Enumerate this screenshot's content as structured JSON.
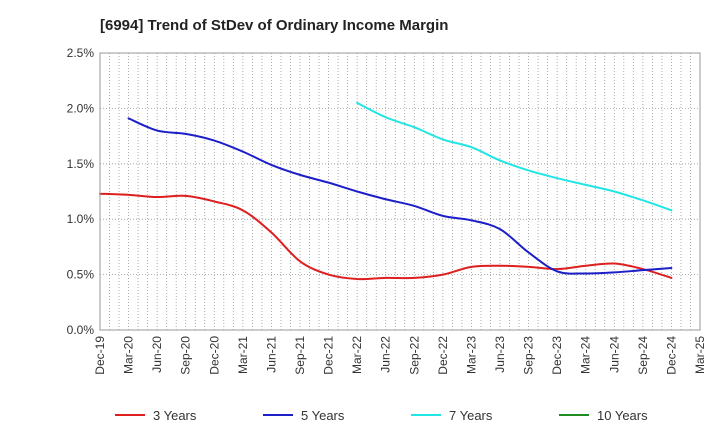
{
  "chart_data": {
    "type": "line",
    "title": "[6994]  Trend of StDev of Ordinary Income Margin",
    "xlabel": "",
    "ylabel": "",
    "x_tick_labels": [
      "Dec-19",
      "Mar-20",
      "Jun-20",
      "Sep-20",
      "Dec-20",
      "Mar-21",
      "Jun-21",
      "Sep-21",
      "Dec-21",
      "Mar-22",
      "Jun-22",
      "Sep-22",
      "Dec-22",
      "Mar-23",
      "Jun-23",
      "Sep-23",
      "Dec-23",
      "Mar-24",
      "Jun-24",
      "Sep-24",
      "Dec-24",
      "Mar-25"
    ],
    "y_tick_labels": [
      "0.0%",
      "0.5%",
      "1.0%",
      "1.5%",
      "2.0%",
      "2.5%"
    ],
    "ylim": [
      0,
      2.5
    ],
    "y_unit": "%",
    "grid": true,
    "legend_position": "bottom",
    "series": [
      {
        "name": "3 Years",
        "color": "#dd1f1f",
        "x": [
          "Dec-19",
          "Mar-20",
          "Jun-20",
          "Sep-20",
          "Dec-20",
          "Mar-21",
          "Jun-21",
          "Sep-21",
          "Dec-21",
          "Mar-22",
          "Jun-22",
          "Sep-22",
          "Dec-22",
          "Mar-23",
          "Jun-23",
          "Sep-23",
          "Dec-23",
          "Mar-24",
          "Jun-24",
          "Sep-24",
          "Dec-24"
        ],
        "values": [
          1.23,
          1.22,
          1.2,
          1.21,
          1.16,
          1.08,
          0.88,
          0.62,
          0.5,
          0.46,
          0.47,
          0.47,
          0.5,
          0.57,
          0.58,
          0.57,
          0.55,
          0.58,
          0.6,
          0.55,
          0.47
        ]
      },
      {
        "name": "5 Years",
        "color": "#1c1fc8",
        "x": [
          "Mar-20",
          "Jun-20",
          "Sep-20",
          "Dec-20",
          "Mar-21",
          "Jun-21",
          "Sep-21",
          "Dec-21",
          "Mar-22",
          "Jun-22",
          "Sep-22",
          "Dec-22",
          "Mar-23",
          "Jun-23",
          "Sep-23",
          "Dec-23",
          "Mar-24",
          "Jun-24",
          "Sep-24",
          "Dec-24"
        ],
        "values": [
          1.91,
          1.8,
          1.77,
          1.71,
          1.61,
          1.49,
          1.4,
          1.33,
          1.25,
          1.18,
          1.12,
          1.03,
          0.99,
          0.91,
          0.7,
          0.53,
          0.51,
          0.52,
          0.54,
          0.56
        ]
      },
      {
        "name": "7 Years",
        "color": "#22e5e5",
        "x": [
          "Mar-22",
          "Jun-22",
          "Sep-22",
          "Dec-22",
          "Mar-23",
          "Jun-23",
          "Sep-23",
          "Dec-23",
          "Mar-24",
          "Jun-24",
          "Sep-24",
          "Dec-24"
        ],
        "values": [
          2.05,
          1.92,
          1.83,
          1.72,
          1.65,
          1.53,
          1.44,
          1.37,
          1.31,
          1.25,
          1.17,
          1.08
        ]
      },
      {
        "name": "10 Years",
        "color": "#1e8c1e",
        "x": [],
        "values": []
      }
    ]
  }
}
